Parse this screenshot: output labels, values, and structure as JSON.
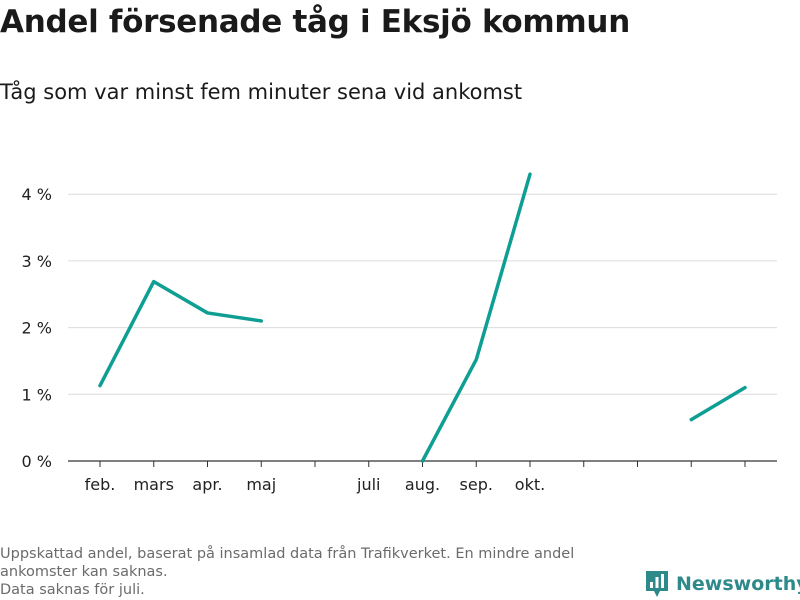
{
  "header": {
    "title": "Andel försenade tåg i Eksjö kommun",
    "subtitle": "Tåg som var minst fem minuter sena vid ankomst"
  },
  "footer": {
    "note_line1": "Uppskattad andel, baserat på insamlad data från Trafikverket. En mindre andel ankomster kan saknas.",
    "note_line2": "Data saknas för juli."
  },
  "brand": {
    "name": "Newsworthy",
    "color": "#2e8a8a"
  },
  "chart_data": {
    "type": "line",
    "title": "Andel försenade tåg i Eksjö kommun",
    "subtitle": "Tåg som var minst fem minuter sena vid ankomst",
    "xlabel": "",
    "ylabel": "",
    "categories": [
      "feb.",
      "mars",
      "apr.",
      "maj",
      "",
      "juli",
      "aug.",
      "sep.",
      "okt.",
      "",
      "",
      "",
      ""
    ],
    "series": [
      {
        "values": [
          1.13,
          2.69,
          2.22,
          2.1,
          null,
          null,
          0.0,
          1.52,
          4.3,
          null,
          null,
          0.62,
          1.1
        ],
        "color": "#0f9e93"
      }
    ],
    "y_ticks": [
      0,
      1,
      2,
      3,
      4
    ],
    "y_tick_labels": [
      "0 %",
      "1 %",
      "2 %",
      "3 %",
      "4 %"
    ],
    "ylim": [
      0,
      4.5
    ],
    "grid": true,
    "legend": "none"
  }
}
